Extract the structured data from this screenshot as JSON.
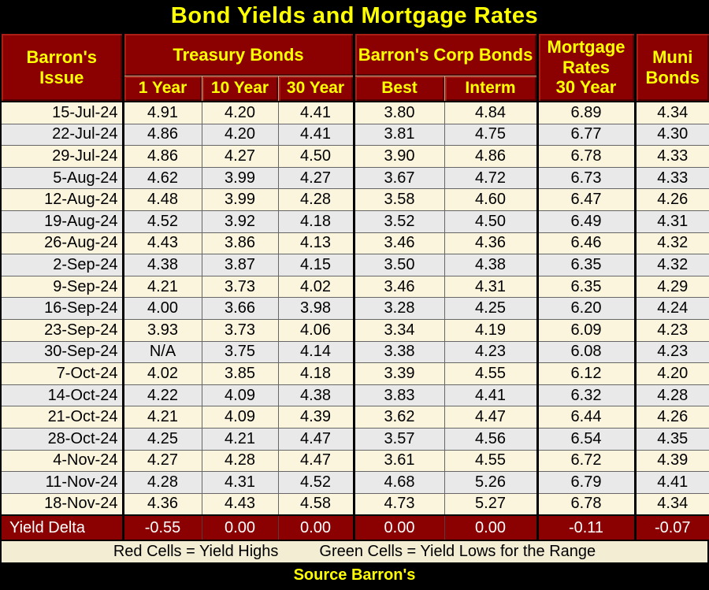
{
  "title": "Bond Yields and Mortgage Rates",
  "colors": {
    "header_maroon": "#8B0000",
    "header_text_yellow": "#FFFF00",
    "cream_row": "#FCF5DE",
    "gray_row": "#E9E9E9",
    "red_highlight": "#F5C7A0",
    "green_highlight": "#C8E2B8",
    "legend_bg": "#F3EDD3"
  },
  "table": {
    "issue_header": {
      "line1": "Barron's",
      "line2": "Issue"
    },
    "treasury": {
      "group": "Treasury Bonds",
      "subs": [
        "1 Year",
        "10 Year",
        "30 Year"
      ]
    },
    "corp": {
      "group": "Barron's Corp Bonds",
      "subs": [
        "Best",
        "Interm"
      ]
    },
    "mortgage_header": {
      "line1": "Mortgage Rates",
      "line2": "30 Year"
    },
    "muni_header": {
      "line1": "Muni",
      "line2": "Bonds"
    },
    "rows": [
      {
        "date": "15-Jul-24",
        "cells": [
          [
            "4.91",
            "red"
          ],
          [
            "4.20",
            ""
          ],
          [
            "4.41",
            ""
          ],
          [
            "3.80",
            ""
          ],
          [
            "4.84",
            ""
          ],
          [
            "6.89",
            "red"
          ],
          [
            "4.34",
            ""
          ]
        ]
      },
      {
        "date": "22-Jul-24",
        "cells": [
          [
            "4.86",
            ""
          ],
          [
            "4.20",
            ""
          ],
          [
            "4.41",
            ""
          ],
          [
            "3.81",
            ""
          ],
          [
            "4.75",
            ""
          ],
          [
            "6.77",
            ""
          ],
          [
            "4.30",
            ""
          ]
        ]
      },
      {
        "date": "29-Jul-24",
        "cells": [
          [
            "4.86",
            ""
          ],
          [
            "4.27",
            ""
          ],
          [
            "4.50",
            ""
          ],
          [
            "3.90",
            ""
          ],
          [
            "4.86",
            ""
          ],
          [
            "6.78",
            ""
          ],
          [
            "4.33",
            ""
          ]
        ]
      },
      {
        "date": "5-Aug-24",
        "cells": [
          [
            "4.62",
            ""
          ],
          [
            "3.99",
            ""
          ],
          [
            "4.27",
            ""
          ],
          [
            "3.67",
            ""
          ],
          [
            "4.72",
            ""
          ],
          [
            "6.73",
            ""
          ],
          [
            "4.33",
            ""
          ]
        ]
      },
      {
        "date": "12-Aug-24",
        "cells": [
          [
            "4.48",
            ""
          ],
          [
            "3.99",
            ""
          ],
          [
            "4.28",
            ""
          ],
          [
            "3.58",
            ""
          ],
          [
            "4.60",
            ""
          ],
          [
            "6.47",
            ""
          ],
          [
            "4.26",
            ""
          ]
        ]
      },
      {
        "date": "19-Aug-24",
        "cells": [
          [
            "4.52",
            ""
          ],
          [
            "3.92",
            ""
          ],
          [
            "4.18",
            ""
          ],
          [
            "3.52",
            ""
          ],
          [
            "4.50",
            ""
          ],
          [
            "6.49",
            ""
          ],
          [
            "4.31",
            ""
          ]
        ]
      },
      {
        "date": "26-Aug-24",
        "cells": [
          [
            "4.43",
            ""
          ],
          [
            "3.86",
            ""
          ],
          [
            "4.13",
            ""
          ],
          [
            "3.46",
            ""
          ],
          [
            "4.36",
            ""
          ],
          [
            "6.46",
            ""
          ],
          [
            "4.32",
            ""
          ]
        ]
      },
      {
        "date": "2-Sep-24",
        "cells": [
          [
            "4.38",
            ""
          ],
          [
            "3.87",
            ""
          ],
          [
            "4.15",
            ""
          ],
          [
            "3.50",
            ""
          ],
          [
            "4.38",
            ""
          ],
          [
            "6.35",
            ""
          ],
          [
            "4.32",
            ""
          ]
        ]
      },
      {
        "date": "9-Sep-24",
        "cells": [
          [
            "4.21",
            ""
          ],
          [
            "3.73",
            ""
          ],
          [
            "4.02",
            ""
          ],
          [
            "3.46",
            ""
          ],
          [
            "4.31",
            ""
          ],
          [
            "6.35",
            ""
          ],
          [
            "4.29",
            ""
          ]
        ]
      },
      {
        "date": "16-Sep-24",
        "cells": [
          [
            "4.00",
            ""
          ],
          [
            "3.66",
            "green"
          ],
          [
            "3.98",
            "green"
          ],
          [
            "3.28",
            "green"
          ],
          [
            "4.25",
            ""
          ],
          [
            "6.20",
            ""
          ],
          [
            "4.24",
            ""
          ]
        ]
      },
      {
        "date": "23-Sep-24",
        "cells": [
          [
            "3.93",
            "green"
          ],
          [
            "3.73",
            ""
          ],
          [
            "4.06",
            ""
          ],
          [
            "3.34",
            ""
          ],
          [
            "4.19",
            "green"
          ],
          [
            "6.09",
            ""
          ],
          [
            "4.23",
            ""
          ]
        ]
      },
      {
        "date": "30-Sep-24",
        "cells": [
          [
            "N/A",
            ""
          ],
          [
            "3.75",
            ""
          ],
          [
            "4.14",
            ""
          ],
          [
            "3.38",
            ""
          ],
          [
            "4.23",
            ""
          ],
          [
            "6.08",
            "green"
          ],
          [
            "4.23",
            ""
          ]
        ]
      },
      {
        "date": "7-Oct-24",
        "cells": [
          [
            "4.02",
            ""
          ],
          [
            "3.85",
            ""
          ],
          [
            "4.18",
            ""
          ],
          [
            "3.39",
            ""
          ],
          [
            "4.55",
            ""
          ],
          [
            "6.12",
            ""
          ],
          [
            "4.20",
            "green"
          ]
        ]
      },
      {
        "date": "14-Oct-24",
        "cells": [
          [
            "4.22",
            ""
          ],
          [
            "4.09",
            ""
          ],
          [
            "4.38",
            ""
          ],
          [
            "3.83",
            ""
          ],
          [
            "4.41",
            ""
          ],
          [
            "6.32",
            ""
          ],
          [
            "4.28",
            ""
          ]
        ]
      },
      {
        "date": "21-Oct-24",
        "cells": [
          [
            "4.21",
            ""
          ],
          [
            "4.09",
            ""
          ],
          [
            "4.39",
            ""
          ],
          [
            "3.62",
            ""
          ],
          [
            "4.47",
            ""
          ],
          [
            "6.44",
            ""
          ],
          [
            "4.26",
            ""
          ]
        ]
      },
      {
        "date": "28-Oct-24",
        "cells": [
          [
            "4.25",
            ""
          ],
          [
            "4.21",
            ""
          ],
          [
            "4.47",
            ""
          ],
          [
            "3.57",
            ""
          ],
          [
            "4.56",
            ""
          ],
          [
            "6.54",
            ""
          ],
          [
            "4.35",
            ""
          ]
        ]
      },
      {
        "date": "4-Nov-24",
        "cells": [
          [
            "4.27",
            ""
          ],
          [
            "4.28",
            ""
          ],
          [
            "4.47",
            ""
          ],
          [
            "3.61",
            ""
          ],
          [
            "4.55",
            ""
          ],
          [
            "6.72",
            ""
          ],
          [
            "4.39",
            ""
          ]
        ]
      },
      {
        "date": "11-Nov-24",
        "cells": [
          [
            "4.28",
            ""
          ],
          [
            "4.31",
            ""
          ],
          [
            "4.52",
            ""
          ],
          [
            "4.68",
            ""
          ],
          [
            "5.26",
            ""
          ],
          [
            "6.79",
            ""
          ],
          [
            "4.41",
            "red"
          ]
        ]
      },
      {
        "date": "18-Nov-24",
        "cells": [
          [
            "4.36",
            ""
          ],
          [
            "4.43",
            "red"
          ],
          [
            "4.58",
            "red"
          ],
          [
            "4.73",
            "red"
          ],
          [
            "5.27",
            "red"
          ],
          [
            "6.78",
            ""
          ],
          [
            "4.34",
            ""
          ]
        ]
      }
    ],
    "delta_row": {
      "label": "Yield Delta",
      "values": [
        "-0.55",
        "0.00",
        "0.00",
        "0.00",
        "0.00",
        "-0.11",
        "-0.07"
      ]
    }
  },
  "legend": {
    "red_label": "Red Cells = Yield Highs",
    "green_label": "Green Cells = Yield Lows for the Range"
  },
  "source": "Source Barron's"
}
